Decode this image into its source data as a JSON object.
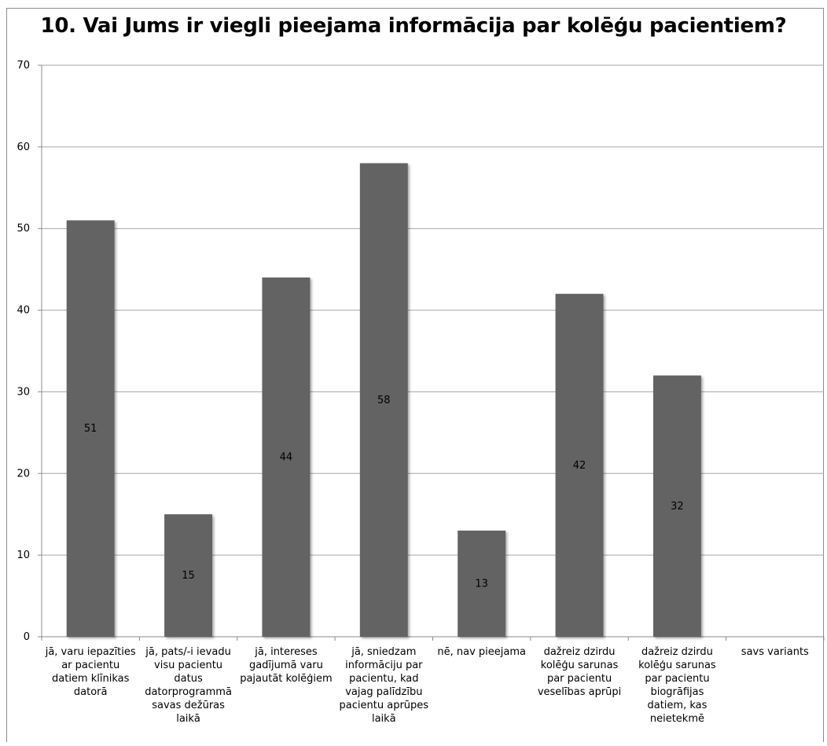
{
  "chart_data": {
    "type": "bar",
    "title": "10. Vai Jums ir viegli pieejama informācija par kolēģu pacientiem?",
    "categories": [
      [
        "jā, varu iepazīties",
        "ar pacientu",
        "datiem klīnikas",
        "datorā"
      ],
      [
        "jā, pats/-i ievadu",
        "visu pacientu",
        "datus",
        "datorprogrammā",
        "savas dežūras",
        "laikā"
      ],
      [
        "jā, intereses",
        "gadījumā varu",
        "pajautāt kolēģiem"
      ],
      [
        "jā, sniedzam",
        "informāciju par",
        "pacientu, kad",
        "vajag palīdzību",
        "pacientu aprūpes",
        "laikā"
      ],
      [
        "nē, nav pieejama"
      ],
      [
        "dažreiz dzirdu",
        "kolēģu sarunas",
        "par pacientu",
        "veselības aprūpi"
      ],
      [
        "dažreiz dzirdu",
        "kolēģu sarunas",
        "par pacientu",
        "biogrāfijas",
        "datiem, kas",
        "neietekmē"
      ],
      [
        "savs variants"
      ]
    ],
    "values": [
      51,
      15,
      44,
      58,
      13,
      42,
      32,
      null
    ],
    "data_labels": [
      "51",
      "15",
      "44",
      "58",
      "13",
      "42",
      "32",
      ""
    ],
    "ylim": [
      0,
      70
    ],
    "yticks": [
      0,
      10,
      20,
      30,
      40,
      50,
      60,
      70
    ],
    "grid": true,
    "legend": "none",
    "bar_color": "#636363",
    "xlabel": "",
    "ylabel": ""
  }
}
